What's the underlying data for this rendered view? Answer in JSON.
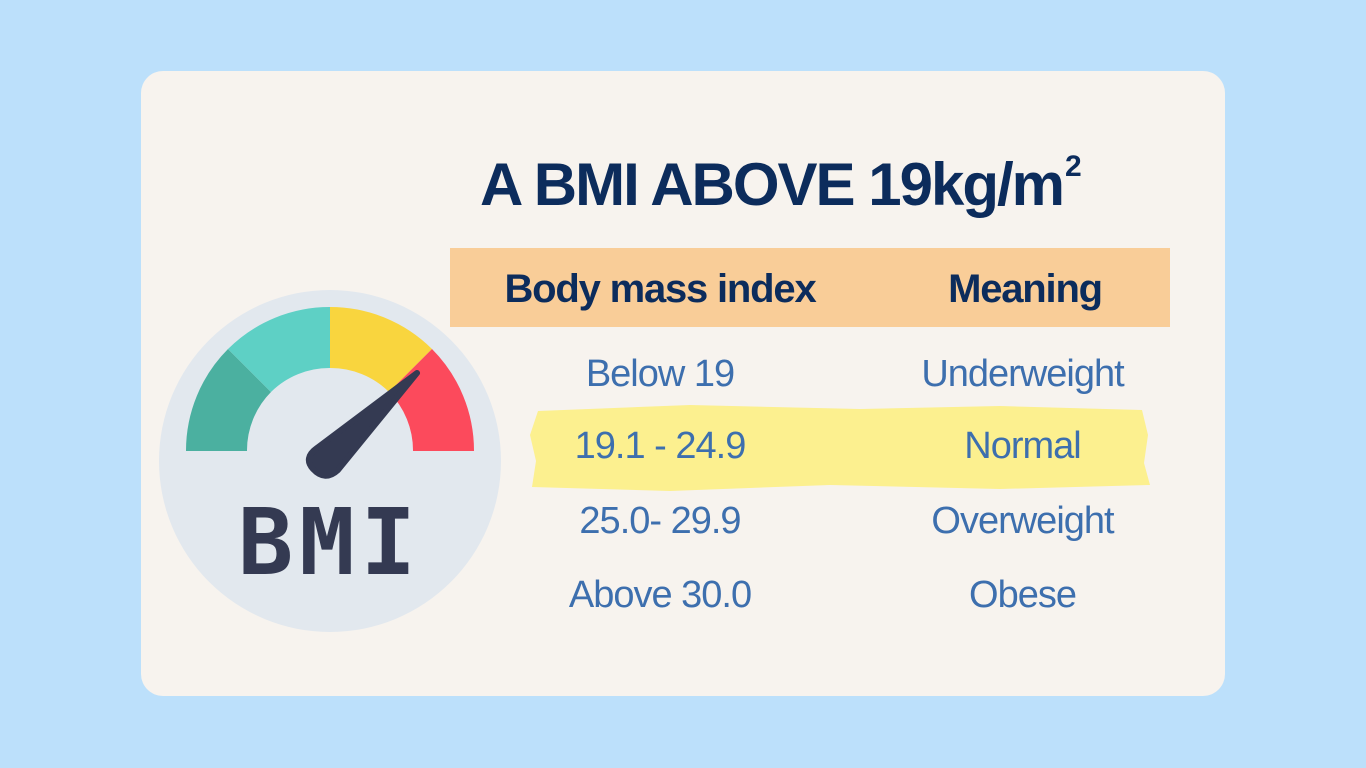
{
  "title": {
    "text": "A BMI ABOVE 19kg/m",
    "superscript": "2"
  },
  "gauge": {
    "label": "BMI",
    "segment_colors": [
      "#4bb0a0",
      "#5ed0c5",
      "#f9d53e",
      "#fc4a5c"
    ],
    "needle_color": "#343a52",
    "dial_color": "#e2e8ee"
  },
  "table": {
    "header_color": "#f9cd98",
    "highlight_color": "#fcf08f",
    "headers": [
      "Body mass index",
      "Meaning"
    ],
    "rows": [
      {
        "range": "Below 19",
        "meaning": "Underweight"
      },
      {
        "range": "19.1 - 24.9",
        "meaning": "Normal",
        "highlighted": true
      },
      {
        "range": "25.0- 29.9",
        "meaning": "Overweight"
      },
      {
        "range": "Above 30.0",
        "meaning": "Obese"
      }
    ]
  }
}
